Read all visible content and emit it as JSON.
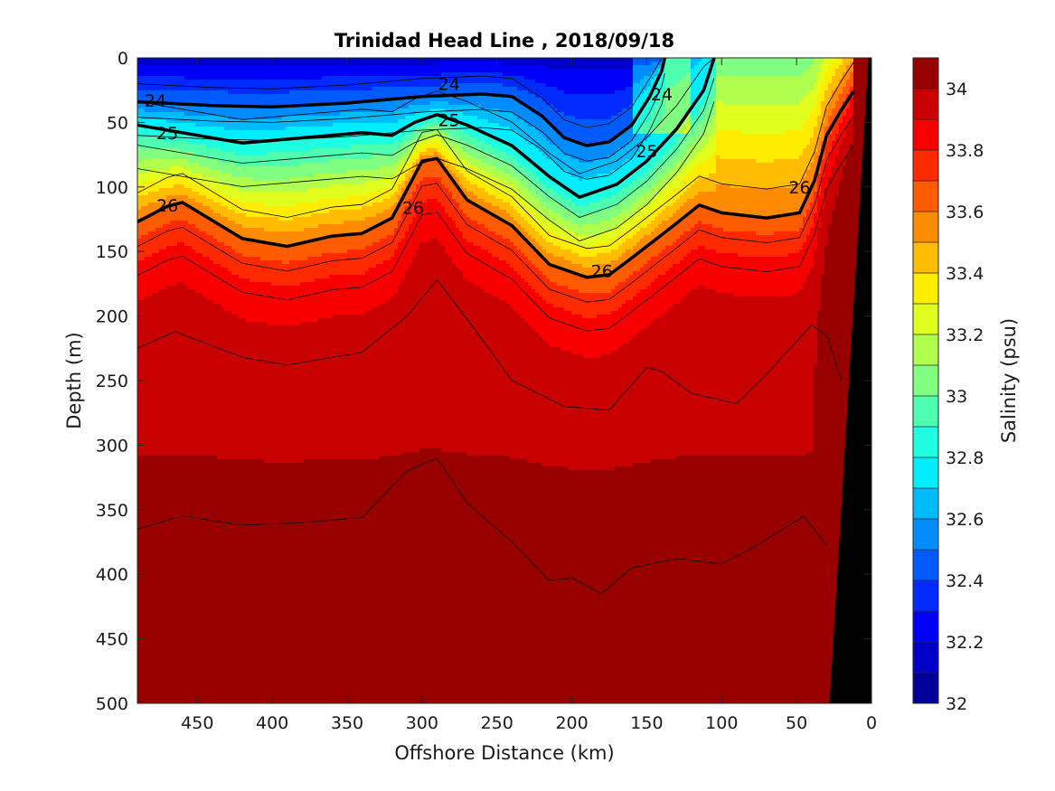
{
  "chart_data": {
    "type": "heatmap",
    "title": "Trinidad Head Line , 2018/09/18",
    "xlabel": "Offshore Distance (km)",
    "ylabel": "Depth (m)",
    "xlim": [
      490,
      0
    ],
    "ylim": [
      0,
      500
    ],
    "y_reversed": true,
    "x_ticks": [
      450,
      400,
      350,
      300,
      250,
      200,
      150,
      100,
      50,
      0
    ],
    "y_ticks": [
      0,
      50,
      100,
      150,
      200,
      250,
      300,
      350,
      400,
      450,
      500
    ],
    "colorbar": {
      "label": "Salinity (psu)",
      "range": [
        32,
        34.1
      ],
      "step": 0.1,
      "ticks": [
        32,
        32.2,
        32.4,
        32.6,
        32.8,
        33,
        33.2,
        33.4,
        33.6,
        33.8,
        34
      ],
      "colormap": "jet"
    },
    "density_contours": [
      {
        "label": "24",
        "points": [
          [
            490,
            34
          ],
          [
            440,
            37
          ],
          [
            400,
            38
          ],
          [
            350,
            35
          ],
          [
            300,
            30
          ],
          [
            260,
            28
          ],
          [
            240,
            30
          ],
          [
            220,
            45
          ],
          [
            205,
            62
          ],
          [
            190,
            68
          ],
          [
            175,
            65
          ],
          [
            160,
            52
          ],
          [
            148,
            30
          ],
          [
            140,
            10
          ],
          [
            138,
            0
          ]
        ]
      },
      {
        "label": "25",
        "points": [
          [
            490,
            52
          ],
          [
            460,
            58
          ],
          [
            420,
            66
          ],
          [
            380,
            62
          ],
          [
            340,
            58
          ],
          [
            320,
            60
          ],
          [
            305,
            50
          ],
          [
            290,
            44
          ],
          [
            270,
            52
          ],
          [
            240,
            68
          ],
          [
            215,
            92
          ],
          [
            195,
            108
          ],
          [
            170,
            98
          ],
          [
            150,
            80
          ],
          [
            130,
            55
          ],
          [
            112,
            25
          ],
          [
            105,
            0
          ]
        ]
      },
      {
        "label": "26",
        "points": [
          [
            490,
            127
          ],
          [
            470,
            115
          ],
          [
            460,
            112
          ],
          [
            420,
            140
          ],
          [
            390,
            146
          ],
          [
            360,
            138
          ],
          [
            340,
            136
          ],
          [
            320,
            124
          ],
          [
            300,
            80
          ],
          [
            290,
            78
          ],
          [
            270,
            110
          ],
          [
            240,
            130
          ],
          [
            215,
            160
          ],
          [
            190,
            170
          ],
          [
            175,
            168
          ],
          [
            160,
            155
          ],
          [
            130,
            128
          ],
          [
            115,
            114
          ],
          [
            100,
            120
          ],
          [
            70,
            124
          ],
          [
            48,
            120
          ],
          [
            38,
            95
          ],
          [
            30,
            60
          ],
          [
            20,
            40
          ],
          [
            12,
            26
          ]
        ]
      }
    ],
    "salinity_field": {
      "description_values": [
        {
          "depth": 0,
          "salinity_offshore": 32.6,
          "salinity_center": 32.3,
          "salinity_nearshore": 33.2
        },
        {
          "depth": 100,
          "salinity_offshore": 33.4,
          "salinity_center": 32.6,
          "salinity_nearshore": 33.4
        },
        {
          "depth": 200,
          "salinity_offshore": 33.95,
          "salinity_center": 33.85,
          "salinity_nearshore": 33.9
        },
        {
          "depth": 350,
          "salinity_offshore": 34.0,
          "salinity_center": 33.95,
          "salinity_nearshore": 34.0
        },
        {
          "depth": 500,
          "salinity_offshore": 34.05,
          "salinity_center": 34.0,
          "salinity_nearshore": 34.1
        }
      ]
    },
    "bathymetry_mask": "black wedge along the right edge (nearshore, 0–25 km)"
  }
}
